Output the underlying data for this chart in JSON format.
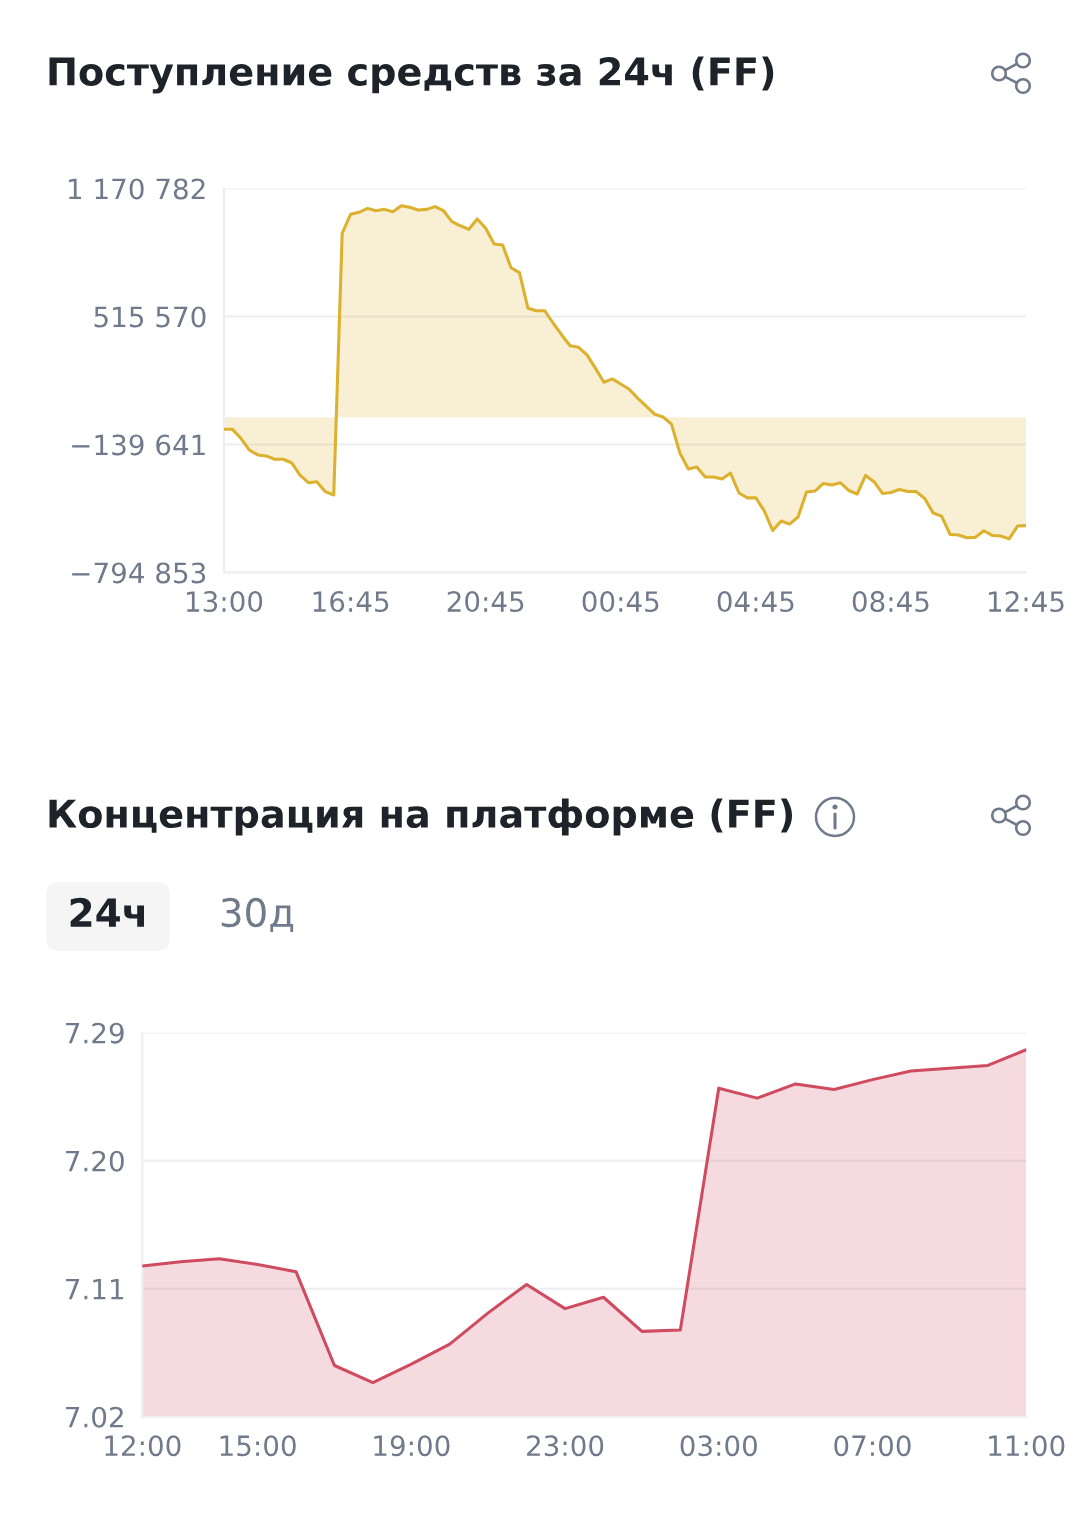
{
  "chart_data": [
    {
      "type": "area",
      "title": "Поступление средств за 24ч (FF)",
      "color": "#dcb12e",
      "categories": [
        "13:00",
        null,
        null,
        null,
        null,
        null,
        null,
        null,
        null,
        null,
        null,
        null,
        null,
        null,
        null,
        "16:45",
        null,
        null,
        null,
        null,
        null,
        null,
        null,
        null,
        null,
        null,
        null,
        null,
        null,
        null,
        null,
        "20:45",
        null,
        null,
        null,
        null,
        null,
        null,
        null,
        null,
        null,
        null,
        null,
        null,
        null,
        null,
        null,
        "00:45",
        null,
        null,
        null,
        null,
        null,
        null,
        null,
        null,
        null,
        null,
        null,
        null,
        null,
        null,
        null,
        "04:45",
        null,
        null,
        null,
        null,
        null,
        null,
        null,
        null,
        null,
        null,
        null,
        null,
        null,
        null,
        null,
        "08:45",
        null,
        null,
        null,
        null,
        null,
        null,
        null,
        null,
        null,
        null,
        null,
        null,
        null,
        null,
        null,
        "12:45"
      ],
      "values": [
        -62000,
        -62000,
        -108000,
        -168000,
        -193000,
        -198000,
        -215000,
        -215000,
        -233000,
        -296000,
        -335000,
        -330000,
        -381000,
        -398000,
        941000,
        1039000,
        1049000,
        1069000,
        1057000,
        1064000,
        1052000,
        1083000,
        1075000,
        1061000,
        1064000,
        1078000,
        1057000,
        1001000,
        980000,
        962000,
        1015000,
        967000,
        887000,
        882000,
        765000,
        740000,
        558000,
        545000,
        545000,
        481000,
        421000,
        366000,
        358000,
        319000,
        250000,
        179000,
        196000,
        170000,
        143000,
        98000,
        57000,
        16000,
        1000,
        -35000,
        -183000,
        -265000,
        -255000,
        -306000,
        -306000,
        -316000,
        -286000,
        -388000,
        -413000,
        -413000,
        -480000,
        -580000,
        -531000,
        -547000,
        -511000,
        -383000,
        -378000,
        -339000,
        -347000,
        -335000,
        -375000,
        -393000,
        -298000,
        -330000,
        -390000,
        -385000,
        -370000,
        -380000,
        -381000,
        -416000,
        -490000,
        -506000,
        -600000,
        -603000,
        -617000,
        -615000,
        -581000,
        -605000,
        -608000,
        -623000,
        -557000,
        -555000
      ],
      "ylim": [
        -794853,
        1170782
      ],
      "yticks": [
        {
          "value": -794853,
          "label": "−794 853"
        },
        {
          "value": -139641,
          "label": "−139 641"
        },
        {
          "value": 515570,
          "label": "515 570"
        },
        {
          "value": 1170782,
          "label": "1 170 782"
        }
      ],
      "grid": "y"
    },
    {
      "type": "area",
      "title": "Концентрация на платформе (FF)",
      "color": "#cf4b5f",
      "annotations": [
        "24ч",
        "30д"
      ],
      "categories": [
        "12:00",
        null,
        null,
        "15:00",
        null,
        null,
        null,
        "19:00",
        null,
        null,
        null,
        "23:00",
        null,
        null,
        null,
        "03:00",
        null,
        null,
        null,
        "07:00",
        null,
        null,
        null,
        "11:00"
      ],
      "values": [
        7.126,
        7.129,
        7.131,
        7.127,
        7.122,
        7.056,
        7.044,
        7.057,
        7.071,
        7.093,
        7.113,
        7.096,
        7.104,
        7.08,
        7.081,
        7.251,
        7.244,
        7.254,
        7.25,
        7.257,
        7.263,
        7.265,
        7.267,
        7.278
      ],
      "ylim": [
        7.02,
        7.29
      ],
      "yticks": [
        7.02,
        7.11,
        {
          "value": 7.2,
          "label": "7.20"
        },
        7.29
      ],
      "grid": "y"
    }
  ]
}
